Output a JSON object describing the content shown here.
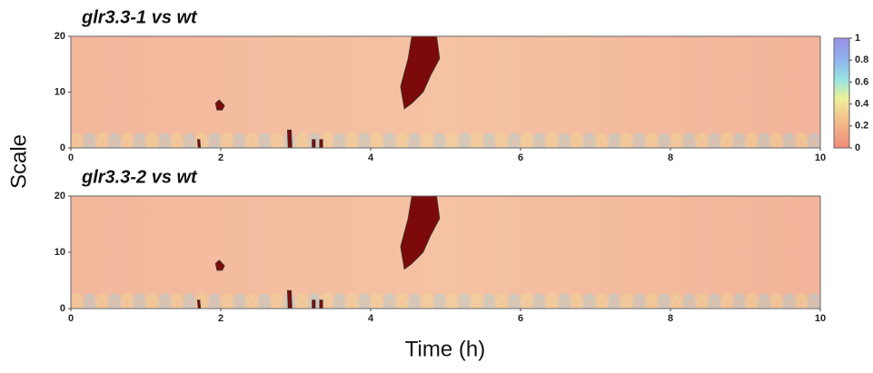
{
  "shared": {
    "ylabel": "Scale",
    "xlabel": "Time (h)"
  },
  "chart_data": [
    {
      "type": "heatmap",
      "title": "glr3.3-1 vs wt",
      "xlim": [
        0,
        10
      ],
      "xticks": [
        0,
        2,
        4,
        6,
        8,
        10
      ],
      "ylim": [
        0,
        20
      ],
      "yticks": [
        0,
        10,
        20
      ],
      "clim": [
        0,
        1
      ],
      "colorbar_ticks": [
        0,
        0.2,
        0.4,
        0.6,
        0.8,
        1
      ]
    },
    {
      "type": "heatmap",
      "title": "glr3.3-2 vs wt",
      "xlim": [
        0,
        10
      ],
      "xticks": [
        0,
        2,
        4,
        6,
        8,
        10
      ],
      "ylim": [
        0,
        20
      ],
      "yticks": [
        0,
        10,
        20
      ]
    }
  ]
}
